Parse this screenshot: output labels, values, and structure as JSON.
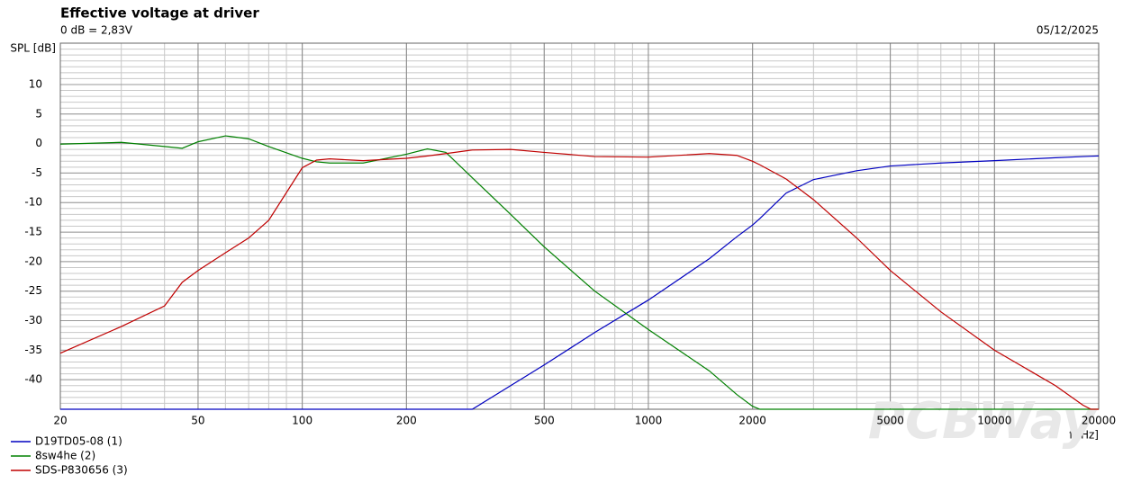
{
  "chart_data": {
    "type": "line",
    "title": "Effective voltage at driver",
    "subtitle": "0 dB = 2,83V",
    "date": "05/12/2025",
    "y_label": "SPL [dB]",
    "x_label": "f [Hz]",
    "watermark": "PCBWay",
    "xscale": "log",
    "grid": true,
    "xlim": [
      20,
      20000
    ],
    "xticks": [
      20,
      50,
      100,
      200,
      500,
      1000,
      2000,
      5000,
      10000,
      20000
    ],
    "ylim": [
      -45,
      17
    ],
    "yticks": [
      -40,
      -35,
      -30,
      -25,
      -20,
      -15,
      -10,
      -5,
      0,
      5,
      10
    ],
    "x": [
      20,
      30,
      40,
      45,
      50,
      60,
      70,
      80,
      100,
      110,
      120,
      150,
      200,
      230,
      260,
      300,
      310,
      400,
      500,
      700,
      1000,
      1500,
      1800,
      2000,
      2100,
      2500,
      3000,
      4000,
      5000,
      7000,
      10000,
      15000,
      18000,
      19000,
      20000
    ],
    "series": [
      {
        "name": "D19TD05-08 (1)",
        "color": "#0000c0",
        "values": [
          -45,
          -45,
          -45,
          -45,
          -45,
          -45,
          -45,
          -45,
          -45,
          -45,
          -45,
          -45,
          -45,
          -45,
          -45,
          -45,
          -45,
          -41,
          -37.5,
          -32,
          -26.5,
          -19.5,
          -15.8,
          -13.8,
          -12.7,
          -8.4,
          -6.1,
          -4.6,
          -3.8,
          -3.3,
          -2.9,
          -2.4,
          -2.2,
          -2.15,
          -2.1
        ]
      },
      {
        "name": "8sw4he (2)",
        "color": "#008000",
        "values": [
          -0.1,
          0.2,
          -0.5,
          -0.8,
          0.3,
          1.3,
          0.8,
          -0.5,
          -2.5,
          -3.1,
          -3.3,
          -3.3,
          -1.8,
          -0.9,
          -1.5,
          -5,
          -5.8,
          -12,
          -17.5,
          -25,
          -31.5,
          -38.5,
          -42.5,
          -44.5,
          -45,
          -45,
          -45,
          -45,
          -45,
          -45,
          -45,
          -45,
          -45,
          -45,
          -45
        ]
      },
      {
        "name": "SDS-P830656 (3)",
        "color": "#c00000",
        "values": [
          -35.5,
          -31,
          -27.5,
          -23.5,
          -21.5,
          -18.5,
          -16,
          -13,
          -4.1,
          -2.8,
          -2.6,
          -2.9,
          -2.5,
          -2.1,
          -1.7,
          -1.2,
          -1.1,
          -1,
          -1.5,
          -2.2,
          -2.3,
          -1.7,
          -2,
          -3,
          -3.6,
          -6,
          -9.5,
          -16,
          -21.5,
          -28.5,
          -35,
          -41,
          -44.3,
          -45,
          -45
        ]
      }
    ]
  }
}
